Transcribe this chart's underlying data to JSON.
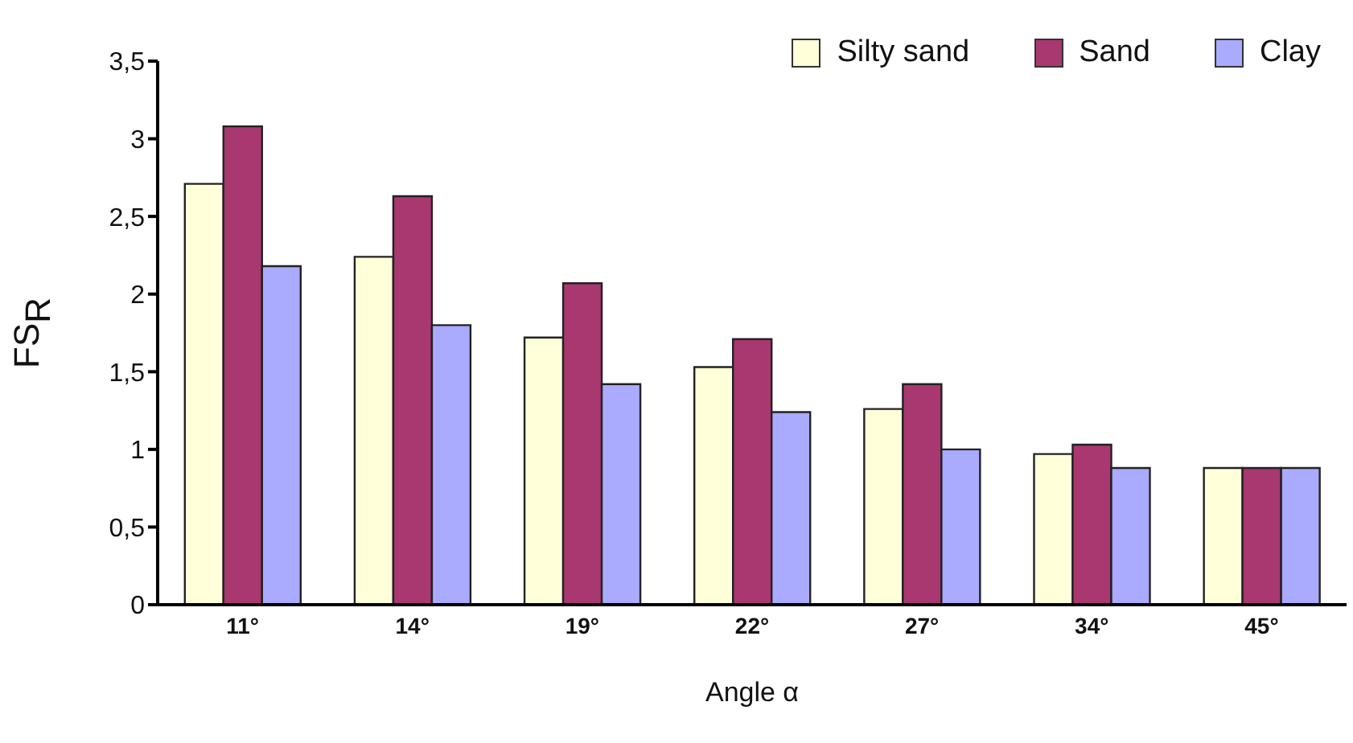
{
  "chart_data": {
    "type": "bar",
    "xlabel": "Angle α",
    "ylabel": "FS$_{R}$",
    "categories": [
      "11°",
      "14°",
      "19°",
      "22°",
      "27°",
      "34°",
      "45°"
    ],
    "series": [
      {
        "name": "Silty sand",
        "color": "#ffffd9",
        "values": [
          2.71,
          2.24,
          1.72,
          1.53,
          1.26,
          0.97,
          0.88
        ]
      },
      {
        "name": "Sand",
        "color": "#a93870",
        "values": [
          3.08,
          2.63,
          2.07,
          1.71,
          1.42,
          1.03,
          0.88
        ]
      },
      {
        "name": "Clay",
        "color": "#aaaaff",
        "values": [
          2.18,
          1.8,
          1.42,
          1.24,
          1.0,
          0.88,
          0.88
        ]
      }
    ],
    "ylim": [
      0,
      3.5
    ],
    "yticks": [
      {
        "value": 0,
        "label": "0"
      },
      {
        "value": 0.5,
        "label": "0,5"
      },
      {
        "value": 1,
        "label": "1"
      },
      {
        "value": 1.5,
        "label": "1,5"
      },
      {
        "value": 2,
        "label": "2"
      },
      {
        "value": 2.5,
        "label": "2,5"
      },
      {
        "value": 3,
        "label": "3"
      },
      {
        "value": 3.5,
        "label": "3,5"
      }
    ],
    "grid": false,
    "legend": "top right"
  }
}
